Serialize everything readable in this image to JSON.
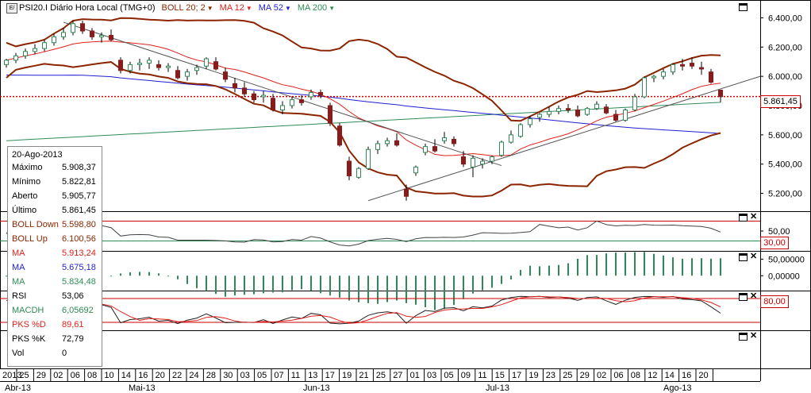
{
  "header": {
    "symbol_label": "PSI20.I Diário Hora Local (TMG+0)",
    "indicators": [
      {
        "label": "BOLL 20; 2",
        "color": "#8b2500"
      },
      {
        "label": "MA 12",
        "color": "#e0201b"
      },
      {
        "label": "MA 52",
        "color": "#1f1fd0"
      },
      {
        "label": "MA 200",
        "color": "#2e8b57"
      }
    ]
  },
  "info": {
    "date": "20-Ago-2013",
    "rows": [
      {
        "key": "Máximo",
        "value": "5.908,37",
        "color": "#000000"
      },
      {
        "key": "Mínimo",
        "value": "5.822,81",
        "color": "#000000"
      },
      {
        "key": "Aberto",
        "value": "5.905,77",
        "color": "#000000"
      },
      {
        "key": "Último",
        "value": "5.861,45",
        "color": "#000000"
      },
      {
        "key": "BOLL Down",
        "value": "5.598,80",
        "color": "#8b2500"
      },
      {
        "key": "BOLL Up",
        "value": "6.100,56",
        "color": "#8b2500"
      },
      {
        "key": "MA",
        "value": "5.913,24",
        "color": "#e0201b"
      },
      {
        "key": "MA",
        "value": "5.675,18",
        "color": "#1f1fd0"
      },
      {
        "key": "MA",
        "value": "5.834,48",
        "color": "#2e8b57"
      },
      {
        "key": "RSI",
        "value": "53,06",
        "color": "#000000"
      },
      {
        "key": "MACDH",
        "value": "6,05692",
        "color": "#2e8b57"
      },
      {
        "key": "PKS %D",
        "value": "89,61",
        "color": "#e0201b"
      },
      {
        "key": "PKS %K",
        "value": "72,79",
        "color": "#000000"
      },
      {
        "key": "Vol",
        "value": "0",
        "color": "#000000"
      }
    ]
  },
  "last_price_label": "5.861,45",
  "rsi_level_label": "30,00",
  "stoch_level_label": "80,00",
  "colors": {
    "bollinger": "#8b2500",
    "ma12": "#e0201b",
    "ma52": "#1f1fd0",
    "ma200": "#2e8b57",
    "candle_up": "#2e8b57",
    "candle_down": "#8b1a1a",
    "trendline": "#555555",
    "macd_hist": "#2e8b57"
  },
  "chart_data": {
    "type": "candlestick",
    "price_axis": {
      "ticks": [
        "6.400,00",
        "6.200,00",
        "6.000,00",
        "5.800,00",
        "5.600,00",
        "5.400,00",
        "5.200,00"
      ],
      "tick_values": [
        6400,
        6200,
        6000,
        5800,
        5600,
        5400,
        5200
      ],
      "range": [
        5100,
        6500
      ]
    },
    "rsi_axis": {
      "ticks": [
        "50,00"
      ],
      "tick_values": [
        50
      ],
      "range": [
        10,
        90
      ],
      "levels": [
        70,
        30
      ]
    },
    "macd_axis": {
      "ticks": [
        "50,00000",
        "0,00000"
      ],
      "tick_values": [
        50,
        0
      ],
      "range": [
        -45,
        75
      ]
    },
    "stoch_axis": {
      "range": [
        0,
        100
      ],
      "levels": [
        80,
        20
      ]
    },
    "x_ticks": [
      "2013",
      "25",
      "29",
      "02",
      "06",
      "08",
      "10",
      "14",
      "16",
      "20",
      "22",
      "24",
      "28",
      "30",
      "03",
      "05",
      "07",
      "11",
      "13",
      "17",
      "19",
      "21",
      "25",
      "27",
      "01",
      "03",
      "05",
      "09",
      "11",
      "15",
      "17",
      "19",
      "23",
      "25",
      "29",
      "02",
      "06",
      "08",
      "12",
      "14",
      "16",
      "20"
    ],
    "month_labels": [
      "Abr-13",
      "Mai-13",
      "Jun-13",
      "Jul-13",
      "Ago-13"
    ],
    "ohlc": [
      [
        6080,
        6120,
        6060,
        6110
      ],
      [
        6110,
        6160,
        6090,
        6140
      ],
      [
        6140,
        6190,
        6120,
        6170
      ],
      [
        6170,
        6220,
        6150,
        6190
      ],
      [
        6190,
        6250,
        6170,
        6230
      ],
      [
        6230,
        6290,
        6210,
        6270
      ],
      [
        6270,
        6330,
        6250,
        6300
      ],
      [
        6300,
        6380,
        6280,
        6360
      ],
      [
        6360,
        6380,
        6290,
        6310
      ],
      [
        6310,
        6330,
        6250,
        6270
      ],
      [
        6270,
        6300,
        6230,
        6280
      ],
      [
        6280,
        6320,
        6240,
        6250
      ],
      [
        6110,
        6130,
        6020,
        6040
      ],
      [
        6040,
        6100,
        6020,
        6080
      ],
      [
        6080,
        6120,
        6040,
        6090
      ],
      [
        6090,
        6130,
        6050,
        6110
      ],
      [
        6080,
        6110,
        6040,
        6060
      ],
      [
        6060,
        6090,
        6030,
        6070
      ],
      [
        6040,
        6070,
        5980,
        5990
      ],
      [
        6000,
        6050,
        5970,
        6030
      ],
      [
        6040,
        6080,
        6010,
        6060
      ],
      [
        6070,
        6130,
        6050,
        6120
      ],
      [
        6100,
        6130,
        6040,
        6050
      ],
      [
        6030,
        6060,
        5960,
        5980
      ],
      [
        5950,
        5990,
        5890,
        5920
      ],
      [
        5920,
        5960,
        5860,
        5880
      ],
      [
        5880,
        5900,
        5820,
        5840
      ],
      [
        5860,
        5900,
        5820,
        5870
      ],
      [
        5850,
        5880,
        5760,
        5770
      ],
      [
        5770,
        5830,
        5740,
        5800
      ],
      [
        5800,
        5860,
        5780,
        5840
      ],
      [
        5840,
        5870,
        5800,
        5820
      ],
      [
        5860,
        5910,
        5840,
        5890
      ],
      [
        5890,
        5910,
        5850,
        5870
      ],
      [
        5800,
        5820,
        5660,
        5680
      ],
      [
        5660,
        5680,
        5520,
        5530
      ],
      [
        5420,
        5450,
        5290,
        5320
      ],
      [
        5310,
        5380,
        5300,
        5370
      ],
      [
        5370,
        5520,
        5360,
        5500
      ],
      [
        5500,
        5560,
        5470,
        5540
      ],
      [
        5540,
        5580,
        5520,
        5560
      ],
      [
        5560,
        5610,
        5520,
        5530
      ],
      [
        5230,
        5260,
        5150,
        5180
      ],
      [
        5340,
        5390,
        5320,
        5380
      ],
      [
        5480,
        5540,
        5460,
        5520
      ],
      [
        5520,
        5570,
        5480,
        5490
      ],
      [
        5560,
        5620,
        5540,
        5580
      ],
      [
        5570,
        5590,
        5520,
        5540
      ],
      [
        5450,
        5490,
        5380,
        5400
      ],
      [
        5380,
        5460,
        5310,
        5440
      ],
      [
        5400,
        5440,
        5370,
        5420
      ],
      [
        5420,
        5460,
        5400,
        5450
      ],
      [
        5460,
        5560,
        5450,
        5550
      ],
      [
        5550,
        5630,
        5540,
        5600
      ],
      [
        5590,
        5680,
        5580,
        5670
      ],
      [
        5670,
        5730,
        5650,
        5710
      ],
      [
        5720,
        5750,
        5690,
        5740
      ],
      [
        5740,
        5790,
        5720,
        5760
      ],
      [
        5760,
        5800,
        5740,
        5780
      ],
      [
        5780,
        5810,
        5750,
        5770
      ],
      [
        5770,
        5800,
        5720,
        5730
      ],
      [
        5740,
        5790,
        5730,
        5780
      ],
      [
        5780,
        5830,
        5770,
        5810
      ],
      [
        5790,
        5810,
        5740,
        5750
      ],
      [
        5740,
        5770,
        5690,
        5700
      ],
      [
        5700,
        5780,
        5690,
        5770
      ],
      [
        5770,
        5880,
        5760,
        5860
      ],
      [
        5860,
        6000,
        5850,
        5990
      ],
      [
        5990,
        6010,
        5960,
        6000
      ],
      [
        6000,
        6050,
        5980,
        6030
      ],
      [
        6030,
        6090,
        6010,
        6080
      ],
      [
        6080,
        6120,
        6040,
        6070
      ],
      [
        6090,
        6130,
        6050,
        6070
      ],
      [
        6060,
        6100,
        6010,
        6050
      ],
      [
        6030,
        6050,
        5950,
        5960
      ],
      [
        5905.77,
        5908.37,
        5822.81,
        5861.45
      ]
    ],
    "series": [
      {
        "name": "BOLL 20; 2"
      },
      {
        "name": "MA 12"
      },
      {
        "name": "MA 52"
      },
      {
        "name": "MA 200"
      }
    ]
  }
}
